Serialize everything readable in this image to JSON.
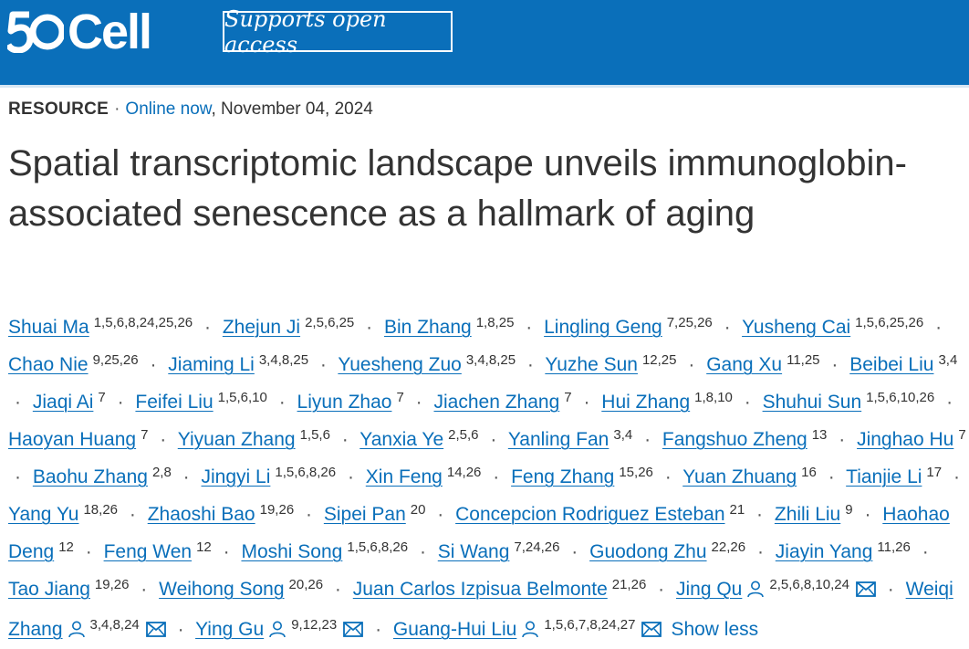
{
  "brand": {
    "logo_number": "50",
    "logo_word": "Cell",
    "open_access_label": "Supports open access",
    "accent": "#0a6fba"
  },
  "article": {
    "type": "RESOURCE",
    "online": "Online now",
    "date": ", November 04, 2024",
    "title": "Spatial transcriptomic landscape unveils immunoglobin-associated senescence as a hallmark of aging"
  },
  "authors": [
    {
      "name": "Shuai Ma",
      "aff": "1,5,6,8,24,25,26"
    },
    {
      "name": "Zhejun Ji",
      "aff": "2,5,6,25"
    },
    {
      "name": "Bin Zhang",
      "aff": "1,8,25"
    },
    {
      "name": "Lingling Geng",
      "aff": "7,25,26"
    },
    {
      "name": "Yusheng Cai",
      "aff": "1,5,6,25,26"
    },
    {
      "name": "Chao Nie",
      "aff": "9,25,26"
    },
    {
      "name": "Jiaming Li",
      "aff": "3,4,8,25"
    },
    {
      "name": "Yuesheng Zuo",
      "aff": "3,4,8,25"
    },
    {
      "name": "Yuzhe Sun",
      "aff": "12,25"
    },
    {
      "name": "Gang Xu",
      "aff": "11,25"
    },
    {
      "name": "Beibei Liu",
      "aff": "3,4"
    },
    {
      "name": "Jiaqi Ai",
      "aff": "7"
    },
    {
      "name": "Feifei Liu",
      "aff": "1,5,6,10"
    },
    {
      "name": "Liyun Zhao",
      "aff": "7"
    },
    {
      "name": "Jiachen Zhang",
      "aff": "7"
    },
    {
      "name": "Hui Zhang",
      "aff": "1,8,10"
    },
    {
      "name": "Shuhui Sun",
      "aff": "1,5,6,10,26"
    },
    {
      "name": "Haoyan Huang",
      "aff": "7"
    },
    {
      "name": "Yiyuan Zhang",
      "aff": "1,5,6"
    },
    {
      "name": "Yanxia Ye",
      "aff": "2,5,6"
    },
    {
      "name": "Yanling Fan",
      "aff": "3,4"
    },
    {
      "name": "Fangshuo Zheng",
      "aff": "13"
    },
    {
      "name": "Jinghao Hu",
      "aff": "7"
    },
    {
      "name": "Baohu Zhang",
      "aff": "2,8"
    },
    {
      "name": "Jingyi Li",
      "aff": "1,5,6,8,26"
    },
    {
      "name": "Xin Feng",
      "aff": "14,26"
    },
    {
      "name": "Feng Zhang",
      "aff": "15,26"
    },
    {
      "name": "Yuan Zhuang",
      "aff": "16"
    },
    {
      "name": "Tianjie Li",
      "aff": "17"
    },
    {
      "name": "Yang Yu",
      "aff": "18,26"
    },
    {
      "name": "Zhaoshi Bao",
      "aff": "19,26"
    },
    {
      "name": "Sipei Pan",
      "aff": "20"
    },
    {
      "name": "Concepcion Rodriguez Esteban",
      "aff": "21"
    },
    {
      "name": "Zhili Liu",
      "aff": "9"
    },
    {
      "name": "Haohao Deng",
      "aff": "12"
    },
    {
      "name": "Feng Wen",
      "aff": "12"
    },
    {
      "name": "Moshi Song",
      "aff": "1,5,6,8,26"
    },
    {
      "name": "Si Wang",
      "aff": "7,24,26"
    },
    {
      "name": "Guodong Zhu",
      "aff": "22,26"
    },
    {
      "name": "Jiayin Yang",
      "aff": "11,26"
    },
    {
      "name": "Tao Jiang",
      "aff": "19,26"
    },
    {
      "name": "Weihong Song",
      "aff": "20,26"
    },
    {
      "name": "Juan Carlos Izpisua Belmonte",
      "aff": "21,26"
    },
    {
      "name": "Jing Qu",
      "aff": "2,5,6,8,10,24",
      "corresponding": true
    },
    {
      "name": "Weiqi Zhang",
      "aff": "3,4,8,24",
      "corresponding": true
    },
    {
      "name": "Ying Gu",
      "aff": "9,12,23",
      "corresponding": true
    },
    {
      "name": "Guang-Hui Liu",
      "aff": "1,5,6,7,8,24,27",
      "corresponding": true
    }
  ],
  "show_less_label": "Show less",
  "icons": [
    "person-icon",
    "mail-icon"
  ]
}
